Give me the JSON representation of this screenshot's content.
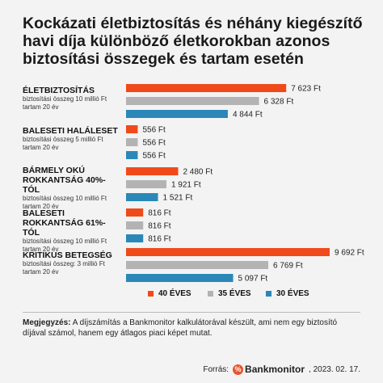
{
  "title": "Kockázati életbiztosítás és néhány kiegészítő havi díja különböző életkorokban azonos biztosítási összegek és tartam esetén",
  "colors": {
    "s40": "#f04a1a",
    "s35": "#b3b3b3",
    "s30": "#2b87b8"
  },
  "groups": [
    {
      "label": "ÉLETBIZTOSÍTÁS",
      "sub1": "biztosítási összeg 10 millió Ft",
      "sub2": "tartam 20 év"
    },
    {
      "label": "BALESETI HALÁLESET",
      "sub1": "biztosítási összeg 5 millió Ft",
      "sub2": "tartam 20 év"
    },
    {
      "label": "BÁRMELY OKÚ ROKKANTSÁG 40%-TÓL",
      "sub1": "biztosítási összeg 10 millió Ft",
      "sub2": "tartam 20 év"
    },
    {
      "label": "BALESETI ROKKANTSÁG 61%-TÓL",
      "sub1": "biztosítási összeg 10 millió Ft",
      "sub2": "tartam 20 év"
    },
    {
      "label": "KRITIKUS BETEGSÉG",
      "sub1": "biztosítási összeg: 3 millió Ft",
      "sub2": "tartam 20 év"
    }
  ],
  "legend": {
    "s40": "40 ÉVES",
    "s35": "35 ÉVES",
    "s30": "30 ÉVES"
  },
  "note": {
    "bold": "Megjegyzés:",
    "text": " A díjszámítás a Bankmonitor kalkulátorával készült, ami nem egy biztosító díjával számol, hanem egy átlagos piaci képet mutat."
  },
  "footer": {
    "source_label": "Forrás:",
    "brand": "Bankmonitor",
    "date": ", 2023. 02. 17."
  },
  "chart_data": {
    "type": "bar",
    "orientation": "horizontal",
    "categories": [
      "ÉLETBIZTOSÍTÁS",
      "BALESETI HALÁLESET",
      "BÁRMELY OKÚ ROKKANTSÁG 40%-TÓL",
      "BALESETI ROKKANTSÁG 61%-TÓL",
      "KRITIKUS BETEGSÉG"
    ],
    "series": [
      {
        "name": "40 ÉVES",
        "values": [
          7623,
          556,
          2480,
          816,
          9692
        ],
        "labels": [
          "7 623 Ft",
          "556 Ft",
          "2 480 Ft",
          "816 Ft",
          "9 692 Ft"
        ]
      },
      {
        "name": "35 ÉVES",
        "values": [
          6328,
          556,
          1921,
          816,
          6769
        ],
        "labels": [
          "6 328 Ft",
          "556 Ft",
          "1 921 Ft",
          "816 Ft",
          "6 769 Ft"
        ]
      },
      {
        "name": "30 ÉVES",
        "values": [
          4844,
          556,
          1521,
          816,
          5097
        ],
        "labels": [
          "4 844 Ft",
          "556 Ft",
          "1 521 Ft",
          "816 Ft",
          "5 097 Ft"
        ]
      }
    ]
  }
}
